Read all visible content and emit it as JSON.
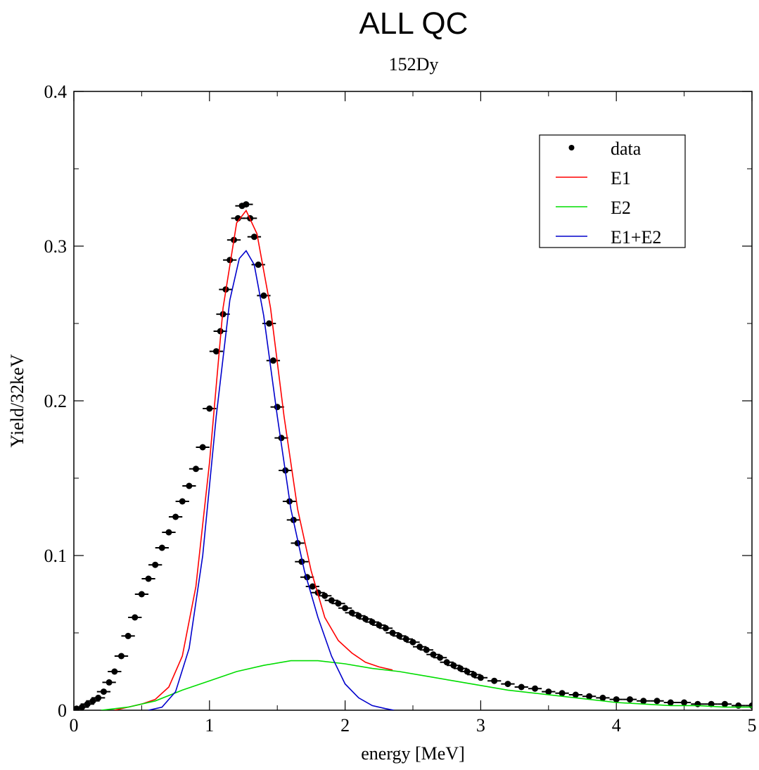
{
  "chart_data": {
    "type": "scatter",
    "title": "ALL QC",
    "subtitle": "152Dy",
    "xlabel": "energy [MeV]",
    "ylabel": "Yield/32keV",
    "xlim": [
      0,
      5
    ],
    "ylim": [
      0,
      0.4
    ],
    "x_ticks": [
      "0",
      "1",
      "2",
      "3",
      "4",
      "5"
    ],
    "y_ticks": [
      "0",
      "0.1",
      "0.2",
      "0.3",
      "0.4"
    ],
    "grid": false,
    "legend_position": "top-right",
    "series": [
      {
        "name": "data",
        "kind": "points_with_xerr",
        "color": "#000000",
        "x_err": 0.1,
        "points": [
          [
            0.02,
            0.001
          ],
          [
            0.06,
            0.002
          ],
          [
            0.1,
            0.004
          ],
          [
            0.14,
            0.006
          ],
          [
            0.18,
            0.008
          ],
          [
            0.22,
            0.012
          ],
          [
            0.26,
            0.018
          ],
          [
            0.3,
            0.025
          ],
          [
            0.35,
            0.035
          ],
          [
            0.4,
            0.048
          ],
          [
            0.45,
            0.06
          ],
          [
            0.5,
            0.075
          ],
          [
            0.55,
            0.085
          ],
          [
            0.6,
            0.094
          ],
          [
            0.65,
            0.105
          ],
          [
            0.7,
            0.115
          ],
          [
            0.75,
            0.125
          ],
          [
            0.8,
            0.135
          ],
          [
            0.85,
            0.145
          ],
          [
            0.9,
            0.156
          ],
          [
            0.95,
            0.17
          ],
          [
            1.0,
            0.195
          ],
          [
            1.05,
            0.232
          ],
          [
            1.08,
            0.245
          ],
          [
            1.1,
            0.256
          ],
          [
            1.12,
            0.272
          ],
          [
            1.15,
            0.291
          ],
          [
            1.18,
            0.304
          ],
          [
            1.21,
            0.318
          ],
          [
            1.24,
            0.326
          ],
          [
            1.27,
            0.327
          ],
          [
            1.3,
            0.318
          ],
          [
            1.33,
            0.306
          ],
          [
            1.36,
            0.288
          ],
          [
            1.4,
            0.268
          ],
          [
            1.44,
            0.25
          ],
          [
            1.47,
            0.226
          ],
          [
            1.5,
            0.196
          ],
          [
            1.53,
            0.176
          ],
          [
            1.56,
            0.155
          ],
          [
            1.59,
            0.135
          ],
          [
            1.62,
            0.123
          ],
          [
            1.65,
            0.108
          ],
          [
            1.68,
            0.096
          ],
          [
            1.72,
            0.086
          ],
          [
            1.76,
            0.08
          ],
          [
            1.8,
            0.076
          ],
          [
            1.85,
            0.074
          ],
          [
            1.9,
            0.071
          ],
          [
            1.95,
            0.069
          ],
          [
            2.0,
            0.066
          ],
          [
            2.05,
            0.063
          ],
          [
            2.1,
            0.061
          ],
          [
            2.15,
            0.059
          ],
          [
            2.2,
            0.057
          ],
          [
            2.25,
            0.055
          ],
          [
            2.3,
            0.053
          ],
          [
            2.35,
            0.05
          ],
          [
            2.4,
            0.048
          ],
          [
            2.45,
            0.046
          ],
          [
            2.5,
            0.044
          ],
          [
            2.55,
            0.041
          ],
          [
            2.6,
            0.039
          ],
          [
            2.65,
            0.036
          ],
          [
            2.7,
            0.034
          ],
          [
            2.75,
            0.031
          ],
          [
            2.8,
            0.029
          ],
          [
            2.85,
            0.027
          ],
          [
            2.9,
            0.025
          ],
          [
            2.95,
            0.023
          ],
          [
            3.0,
            0.021
          ],
          [
            3.1,
            0.019
          ],
          [
            3.2,
            0.017
          ],
          [
            3.3,
            0.015
          ],
          [
            3.4,
            0.014
          ],
          [
            3.5,
            0.012
          ],
          [
            3.6,
            0.011
          ],
          [
            3.7,
            0.01
          ],
          [
            3.8,
            0.009
          ],
          [
            3.9,
            0.008
          ],
          [
            4.0,
            0.007
          ],
          [
            4.1,
            0.007
          ],
          [
            4.2,
            0.006
          ],
          [
            4.3,
            0.006
          ],
          [
            4.4,
            0.005
          ],
          [
            4.5,
            0.005
          ],
          [
            4.6,
            0.004
          ],
          [
            4.7,
            0.004
          ],
          [
            4.8,
            0.004
          ],
          [
            4.9,
            0.003
          ],
          [
            5.0,
            0.003
          ]
        ]
      },
      {
        "name": "E1",
        "kind": "line",
        "color": "#ff0000",
        "points": [
          [
            0.3,
            0.0
          ],
          [
            0.4,
            0.002
          ],
          [
            0.5,
            0.004
          ],
          [
            0.6,
            0.007
          ],
          [
            0.7,
            0.015
          ],
          [
            0.8,
            0.035
          ],
          [
            0.9,
            0.08
          ],
          [
            1.0,
            0.16
          ],
          [
            1.1,
            0.26
          ],
          [
            1.2,
            0.315
          ],
          [
            1.27,
            0.323
          ],
          [
            1.35,
            0.308
          ],
          [
            1.45,
            0.26
          ],
          [
            1.55,
            0.19
          ],
          [
            1.65,
            0.13
          ],
          [
            1.75,
            0.09
          ],
          [
            1.85,
            0.06
          ],
          [
            1.95,
            0.045
          ],
          [
            2.05,
            0.037
          ],
          [
            2.15,
            0.031
          ],
          [
            2.25,
            0.028
          ],
          [
            2.35,
            0.026
          ]
        ]
      },
      {
        "name": "E2",
        "kind": "line",
        "color": "#00dd00",
        "points": [
          [
            0.2,
            0.0
          ],
          [
            0.4,
            0.002
          ],
          [
            0.6,
            0.006
          ],
          [
            0.8,
            0.013
          ],
          [
            1.0,
            0.019
          ],
          [
            1.2,
            0.025
          ],
          [
            1.4,
            0.029
          ],
          [
            1.6,
            0.032
          ],
          [
            1.8,
            0.032
          ],
          [
            2.0,
            0.03
          ],
          [
            2.2,
            0.027
          ],
          [
            2.4,
            0.025
          ],
          [
            2.6,
            0.022
          ],
          [
            2.8,
            0.019
          ],
          [
            3.0,
            0.016
          ],
          [
            3.2,
            0.013
          ],
          [
            3.4,
            0.011
          ],
          [
            3.6,
            0.009
          ],
          [
            3.8,
            0.007
          ],
          [
            4.0,
            0.005
          ],
          [
            4.2,
            0.004
          ],
          [
            4.4,
            0.003
          ],
          [
            4.6,
            0.003
          ],
          [
            4.8,
            0.002
          ],
          [
            5.0,
            0.002
          ]
        ]
      },
      {
        "name": "E1+E2",
        "kind": "line",
        "color": "#0000cc",
        "points": [
          [
            0.55,
            0.0
          ],
          [
            0.65,
            0.002
          ],
          [
            0.75,
            0.012
          ],
          [
            0.85,
            0.04
          ],
          [
            0.95,
            0.1
          ],
          [
            1.05,
            0.19
          ],
          [
            1.15,
            0.265
          ],
          [
            1.22,
            0.292
          ],
          [
            1.27,
            0.297
          ],
          [
            1.33,
            0.288
          ],
          [
            1.4,
            0.255
          ],
          [
            1.5,
            0.19
          ],
          [
            1.6,
            0.13
          ],
          [
            1.7,
            0.09
          ],
          [
            1.8,
            0.06
          ],
          [
            1.9,
            0.035
          ],
          [
            2.0,
            0.017
          ],
          [
            2.1,
            0.008
          ],
          [
            2.2,
            0.003
          ],
          [
            2.3,
            0.001
          ],
          [
            2.36,
            0.0
          ]
        ]
      }
    ]
  }
}
